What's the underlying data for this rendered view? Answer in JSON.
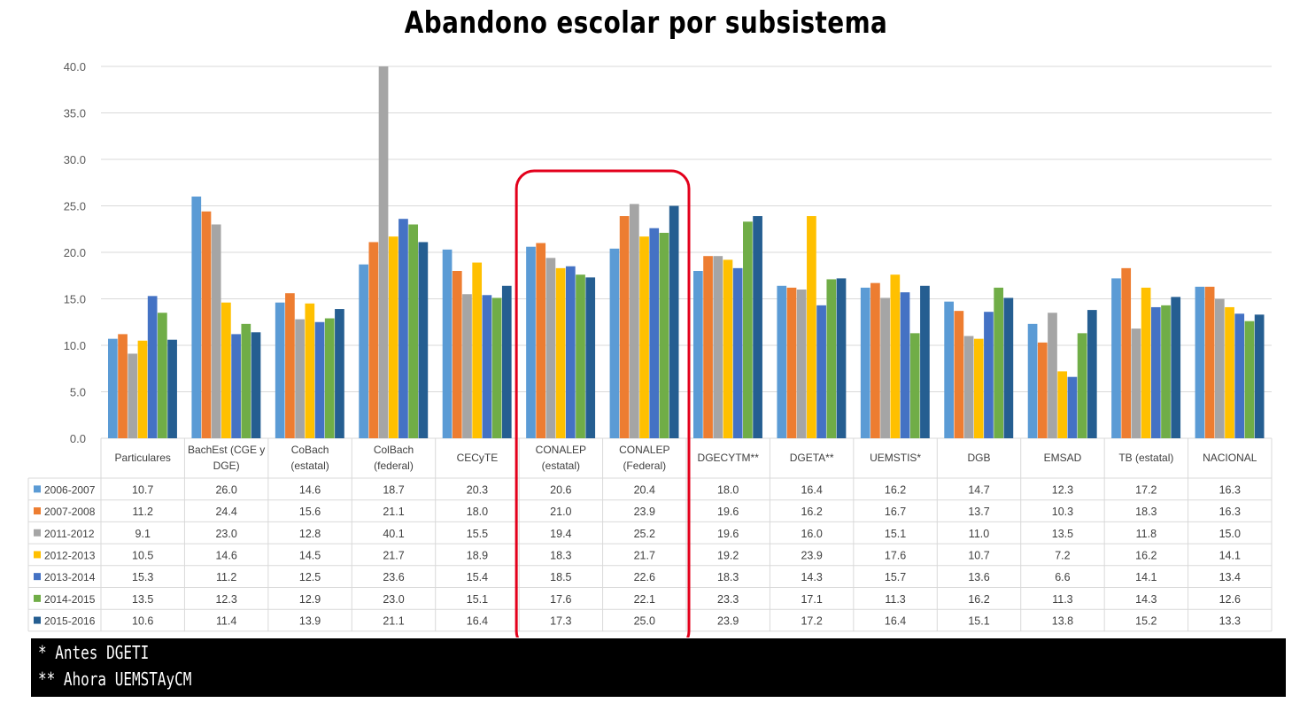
{
  "title": "Abandono escolar por subsistema",
  "footnotes": [
    "* Antes DGETI",
    "** Ahora UEMSTAyCM"
  ],
  "colors": {
    "series": [
      "#5B9BD5",
      "#ED7D31",
      "#A5A5A5",
      "#FFC000",
      "#4472C4",
      "#70AD47",
      "#255E91"
    ],
    "highlight": "#E3001B",
    "grid": "#D9D9D9"
  },
  "chart_data": {
    "type": "bar",
    "title": "Abandono escolar por subsistema",
    "xlabel": "",
    "ylabel": "",
    "ylim": [
      0,
      40
    ],
    "yticks": [
      "0.0",
      "5.0",
      "10.0",
      "15.0",
      "20.0",
      "25.0",
      "30.0",
      "35.0",
      "40.0"
    ],
    "grid": true,
    "legend": "data-table-left",
    "categories": [
      [
        "Particulares"
      ],
      [
        "BachEst (CGE y",
        "DGE)"
      ],
      [
        "CoBach",
        "(estatal)"
      ],
      [
        "ColBach",
        "(federal)"
      ],
      [
        "CECyTE"
      ],
      [
        "CONALEP",
        "(estatal)"
      ],
      [
        "CONALEP",
        "(Federal)"
      ],
      [
        "DGECYTM**"
      ],
      [
        "DGETA**"
      ],
      [
        "UEMSTIS*"
      ],
      [
        "DGB"
      ],
      [
        "EMSAD"
      ],
      [
        "TB (estatal)"
      ],
      [
        "NACIONAL"
      ]
    ],
    "series": [
      {
        "name": "2006-2007",
        "values": [
          "10.7",
          "26.0",
          "14.6",
          "18.7",
          "20.3",
          "20.6",
          "20.4",
          "18.0",
          "16.4",
          "16.2",
          "14.7",
          "12.3",
          "17.2",
          "16.3"
        ]
      },
      {
        "name": "2007-2008",
        "values": [
          "11.2",
          "24.4",
          "15.6",
          "21.1",
          "18.0",
          "21.0",
          "23.9",
          "19.6",
          "16.2",
          "16.7",
          "13.7",
          "10.3",
          "18.3",
          "16.3"
        ]
      },
      {
        "name": "2011-2012",
        "values": [
          "9.1",
          "23.0",
          "12.8",
          "40.1",
          "15.5",
          "19.4",
          "25.2",
          "19.6",
          "16.0",
          "15.1",
          "11.0",
          "13.5",
          "11.8",
          "15.0"
        ]
      },
      {
        "name": "2012-2013",
        "values": [
          "10.5",
          "14.6",
          "14.5",
          "21.7",
          "18.9",
          "18.3",
          "21.7",
          "19.2",
          "23.9",
          "17.6",
          "10.7",
          "7.2",
          "16.2",
          "14.1"
        ]
      },
      {
        "name": "2013-2014",
        "values": [
          "15.3",
          "11.2",
          "12.5",
          "23.6",
          "15.4",
          "18.5",
          "22.6",
          "18.3",
          "14.3",
          "15.7",
          "13.6",
          "6.6",
          "14.1",
          "13.4"
        ]
      },
      {
        "name": "2014-2015",
        "values": [
          "13.5",
          "12.3",
          "12.9",
          "23.0",
          "15.1",
          "17.6",
          "22.1",
          "23.3",
          "17.1",
          "11.3",
          "16.2",
          "11.3",
          "14.3",
          "12.6"
        ]
      },
      {
        "name": "2015-2016",
        "values": [
          "10.6",
          "11.4",
          "13.9",
          "21.1",
          "16.4",
          "17.3",
          "25.0",
          "23.9",
          "17.2",
          "16.4",
          "15.1",
          "13.8",
          "15.2",
          "13.3"
        ]
      }
    ],
    "highlighted_categories": [
      "CONALEP (estatal)",
      "CONALEP (Federal)"
    ]
  }
}
